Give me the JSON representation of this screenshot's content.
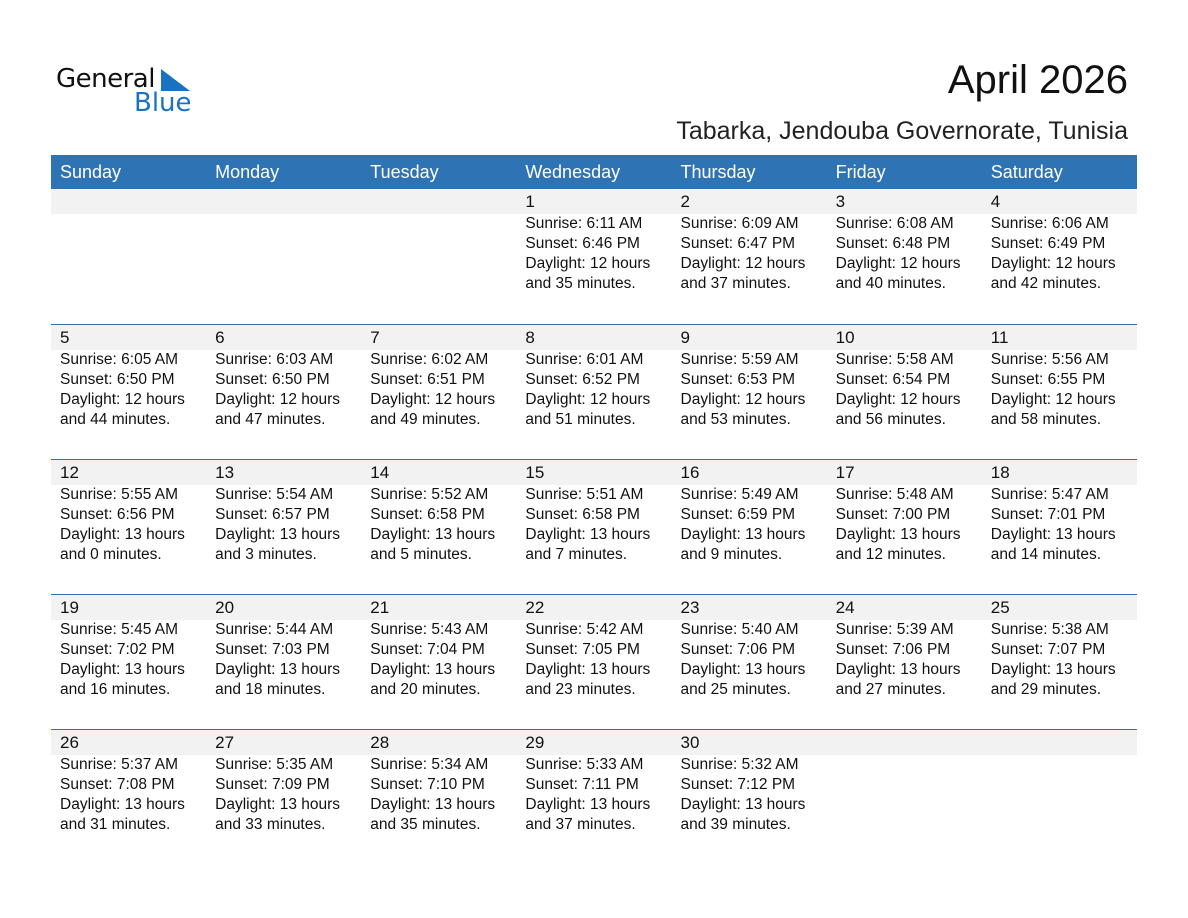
{
  "logo": {
    "line1": "General",
    "line2": "Blue"
  },
  "title": "April 2026",
  "subtitle": "Tabarka, Jendouba Governorate, Tunisia",
  "colors": {
    "header": "#2E74B5",
    "strip": "#f2f2f2",
    "logo_blue": "#1a73c0"
  },
  "weekdays": [
    "Sunday",
    "Monday",
    "Tuesday",
    "Wednesday",
    "Thursday",
    "Friday",
    "Saturday"
  ],
  "weeks": [
    [
      null,
      null,
      null,
      {
        "day": "1",
        "sunrise": "Sunrise: 6:11 AM",
        "sunset": "Sunset: 6:46 PM",
        "daylight1": "Daylight: 12 hours",
        "daylight2": "and 35 minutes."
      },
      {
        "day": "2",
        "sunrise": "Sunrise: 6:09 AM",
        "sunset": "Sunset: 6:47 PM",
        "daylight1": "Daylight: 12 hours",
        "daylight2": "and 37 minutes."
      },
      {
        "day": "3",
        "sunrise": "Sunrise: 6:08 AM",
        "sunset": "Sunset: 6:48 PM",
        "daylight1": "Daylight: 12 hours",
        "daylight2": "and 40 minutes."
      },
      {
        "day": "4",
        "sunrise": "Sunrise: 6:06 AM",
        "sunset": "Sunset: 6:49 PM",
        "daylight1": "Daylight: 12 hours",
        "daylight2": "and 42 minutes."
      }
    ],
    [
      {
        "day": "5",
        "sunrise": "Sunrise: 6:05 AM",
        "sunset": "Sunset: 6:50 PM",
        "daylight1": "Daylight: 12 hours",
        "daylight2": "and 44 minutes."
      },
      {
        "day": "6",
        "sunrise": "Sunrise: 6:03 AM",
        "sunset": "Sunset: 6:50 PM",
        "daylight1": "Daylight: 12 hours",
        "daylight2": "and 47 minutes."
      },
      {
        "day": "7",
        "sunrise": "Sunrise: 6:02 AM",
        "sunset": "Sunset: 6:51 PM",
        "daylight1": "Daylight: 12 hours",
        "daylight2": "and 49 minutes."
      },
      {
        "day": "8",
        "sunrise": "Sunrise: 6:01 AM",
        "sunset": "Sunset: 6:52 PM",
        "daylight1": "Daylight: 12 hours",
        "daylight2": "and 51 minutes."
      },
      {
        "day": "9",
        "sunrise": "Sunrise: 5:59 AM",
        "sunset": "Sunset: 6:53 PM",
        "daylight1": "Daylight: 12 hours",
        "daylight2": "and 53 minutes."
      },
      {
        "day": "10",
        "sunrise": "Sunrise: 5:58 AM",
        "sunset": "Sunset: 6:54 PM",
        "daylight1": "Daylight: 12 hours",
        "daylight2": "and 56 minutes."
      },
      {
        "day": "11",
        "sunrise": "Sunrise: 5:56 AM",
        "sunset": "Sunset: 6:55 PM",
        "daylight1": "Daylight: 12 hours",
        "daylight2": "and 58 minutes."
      }
    ],
    [
      {
        "day": "12",
        "sunrise": "Sunrise: 5:55 AM",
        "sunset": "Sunset: 6:56 PM",
        "daylight1": "Daylight: 13 hours",
        "daylight2": "and 0 minutes."
      },
      {
        "day": "13",
        "sunrise": "Sunrise: 5:54 AM",
        "sunset": "Sunset: 6:57 PM",
        "daylight1": "Daylight: 13 hours",
        "daylight2": "and 3 minutes."
      },
      {
        "day": "14",
        "sunrise": "Sunrise: 5:52 AM",
        "sunset": "Sunset: 6:58 PM",
        "daylight1": "Daylight: 13 hours",
        "daylight2": "and 5 minutes."
      },
      {
        "day": "15",
        "sunrise": "Sunrise: 5:51 AM",
        "sunset": "Sunset: 6:58 PM",
        "daylight1": "Daylight: 13 hours",
        "daylight2": "and 7 minutes."
      },
      {
        "day": "16",
        "sunrise": "Sunrise: 5:49 AM",
        "sunset": "Sunset: 6:59 PM",
        "daylight1": "Daylight: 13 hours",
        "daylight2": "and 9 minutes."
      },
      {
        "day": "17",
        "sunrise": "Sunrise: 5:48 AM",
        "sunset": "Sunset: 7:00 PM",
        "daylight1": "Daylight: 13 hours",
        "daylight2": "and 12 minutes."
      },
      {
        "day": "18",
        "sunrise": "Sunrise: 5:47 AM",
        "sunset": "Sunset: 7:01 PM",
        "daylight1": "Daylight: 13 hours",
        "daylight2": "and 14 minutes."
      }
    ],
    [
      {
        "day": "19",
        "sunrise": "Sunrise: 5:45 AM",
        "sunset": "Sunset: 7:02 PM",
        "daylight1": "Daylight: 13 hours",
        "daylight2": "and 16 minutes."
      },
      {
        "day": "20",
        "sunrise": "Sunrise: 5:44 AM",
        "sunset": "Sunset: 7:03 PM",
        "daylight1": "Daylight: 13 hours",
        "daylight2": "and 18 minutes."
      },
      {
        "day": "21",
        "sunrise": "Sunrise: 5:43 AM",
        "sunset": "Sunset: 7:04 PM",
        "daylight1": "Daylight: 13 hours",
        "daylight2": "and 20 minutes."
      },
      {
        "day": "22",
        "sunrise": "Sunrise: 5:42 AM",
        "sunset": "Sunset: 7:05 PM",
        "daylight1": "Daylight: 13 hours",
        "daylight2": "and 23 minutes."
      },
      {
        "day": "23",
        "sunrise": "Sunrise: 5:40 AM",
        "sunset": "Sunset: 7:06 PM",
        "daylight1": "Daylight: 13 hours",
        "daylight2": "and 25 minutes."
      },
      {
        "day": "24",
        "sunrise": "Sunrise: 5:39 AM",
        "sunset": "Sunset: 7:06 PM",
        "daylight1": "Daylight: 13 hours",
        "daylight2": "and 27 minutes."
      },
      {
        "day": "25",
        "sunrise": "Sunrise: 5:38 AM",
        "sunset": "Sunset: 7:07 PM",
        "daylight1": "Daylight: 13 hours",
        "daylight2": "and 29 minutes."
      }
    ],
    [
      {
        "day": "26",
        "sunrise": "Sunrise: 5:37 AM",
        "sunset": "Sunset: 7:08 PM",
        "daylight1": "Daylight: 13 hours",
        "daylight2": "and 31 minutes."
      },
      {
        "day": "27",
        "sunrise": "Sunrise: 5:35 AM",
        "sunset": "Sunset: 7:09 PM",
        "daylight1": "Daylight: 13 hours",
        "daylight2": "and 33 minutes."
      },
      {
        "day": "28",
        "sunrise": "Sunrise: 5:34 AM",
        "sunset": "Sunset: 7:10 PM",
        "daylight1": "Daylight: 13 hours",
        "daylight2": "and 35 minutes."
      },
      {
        "day": "29",
        "sunrise": "Sunrise: 5:33 AM",
        "sunset": "Sunset: 7:11 PM",
        "daylight1": "Daylight: 13 hours",
        "daylight2": "and 37 minutes."
      },
      {
        "day": "30",
        "sunrise": "Sunrise: 5:32 AM",
        "sunset": "Sunset: 7:12 PM",
        "daylight1": "Daylight: 13 hours",
        "daylight2": "and 39 minutes."
      },
      null,
      null
    ]
  ]
}
